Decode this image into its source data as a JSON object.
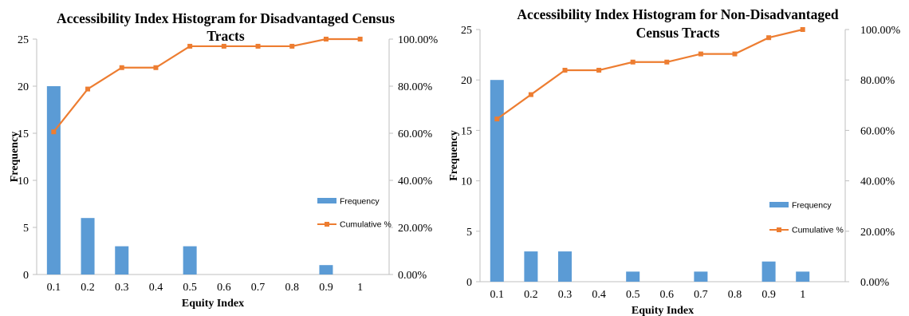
{
  "chart_data": [
    {
      "type": "bar",
      "title_lines": [
        "Accessibility Index Histogram for Disadvantaged Census",
        "Tracts"
      ],
      "xlabel": "Equity Index",
      "ylabel": "Frequency",
      "categories": [
        "0.1",
        "0.2",
        "0.3",
        "0.4",
        "0.5",
        "0.6",
        "0.7",
        "0.8",
        "0.9",
        "1"
      ],
      "ylim": [
        0,
        25
      ],
      "y_ticks": [
        "0",
        "5",
        "10",
        "15",
        "20",
        "25"
      ],
      "y2lim": [
        0,
        100
      ],
      "y2_ticks": [
        "0.00%",
        "20.00%",
        "40.00%",
        "60.00%",
        "80.00%",
        "100.00%"
      ],
      "legend_position": "right",
      "series": [
        {
          "name": "Frequency",
          "type": "bar",
          "color": "#5b9bd5",
          "values": [
            20,
            6,
            3,
            0,
            3,
            0,
            0,
            0,
            1,
            0
          ]
        },
        {
          "name": "Cumulative %",
          "type": "line",
          "axis": "secondary",
          "color": "#ed7d31",
          "values": [
            60.61,
            78.79,
            87.88,
            87.88,
            96.97,
            96.97,
            96.97,
            96.97,
            100,
            100
          ]
        }
      ]
    },
    {
      "type": "bar",
      "title_lines": [
        "Accessibility Index Histogram for Non-Disadvantaged",
        "Census Tracts"
      ],
      "xlabel": "Equity Index",
      "ylabel": "Frequency",
      "categories": [
        "0.1",
        "0.2",
        "0.3",
        "0.4",
        "0.5",
        "0.6",
        "0.7",
        "0.8",
        "0.9",
        "1"
      ],
      "ylim": [
        0,
        25
      ],
      "y_ticks": [
        "0",
        "5",
        "10",
        "15",
        "20",
        "25"
      ],
      "y2lim": [
        0,
        100
      ],
      "y2_ticks": [
        "0.00%",
        "20.00%",
        "40.00%",
        "60.00%",
        "80.00%",
        "100.00%"
      ],
      "legend_position": "right",
      "series": [
        {
          "name": "Frequency",
          "type": "bar",
          "color": "#5b9bd5",
          "values": [
            20,
            3,
            3,
            0,
            1,
            0,
            1,
            0,
            2,
            1
          ]
        },
        {
          "name": "Cumulative %",
          "type": "line",
          "axis": "secondary",
          "color": "#ed7d31",
          "values": [
            64.52,
            74.19,
            83.87,
            83.87,
            87.1,
            87.1,
            90.32,
            90.32,
            96.77,
            100
          ]
        }
      ]
    }
  ]
}
